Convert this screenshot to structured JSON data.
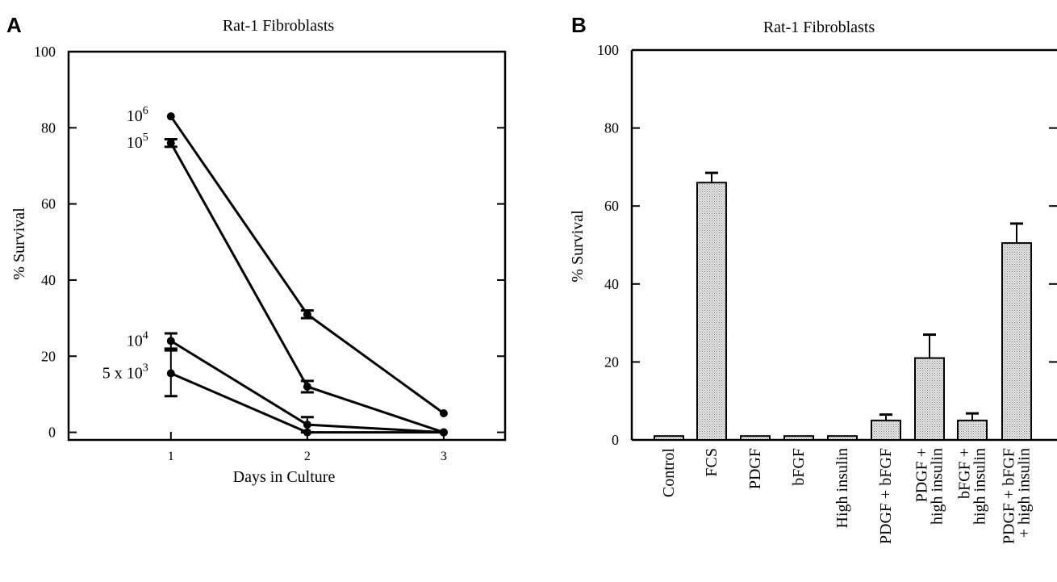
{
  "chart_data": [
    {
      "panel_letter": "A",
      "type": "line",
      "title": "Rat-1 Fibroblasts",
      "xlabel": "Days in Culture",
      "ylabel": "% Survival",
      "xlim": [
        0.25,
        3.45
      ],
      "ylim": [
        -2,
        100
      ],
      "x_ticks": [
        1,
        2,
        3
      ],
      "y_ticks": [
        0,
        20,
        40,
        60,
        80,
        100
      ],
      "series": [
        {
          "label_base": "10",
          "label_sup": "6",
          "x": [
            1,
            2,
            3
          ],
          "y": [
            83,
            31,
            5
          ],
          "err": [
            0,
            1,
            0
          ]
        },
        {
          "label_base": "10",
          "label_sup": "5",
          "x": [
            1,
            2,
            3
          ],
          "y": [
            76,
            12,
            0
          ],
          "err": [
            1,
            1.5,
            0
          ]
        },
        {
          "label_base": "10",
          "label_sup": "4",
          "x": [
            1,
            2,
            3
          ],
          "y": [
            24,
            2,
            0
          ],
          "err": [
            2,
            2,
            0
          ]
        },
        {
          "label_base": "5 x 10",
          "label_sup": "3",
          "x": [
            1,
            2,
            3
          ],
          "y": [
            15.5,
            0,
            0
          ],
          "err": [
            6,
            0,
            0
          ]
        }
      ]
    },
    {
      "panel_letter": "B",
      "type": "bar",
      "title": "Rat-1 Fibroblasts",
      "ylabel": "% Survival",
      "ylim": [
        0,
        100
      ],
      "y_ticks": [
        0,
        20,
        40,
        60,
        80,
        100
      ],
      "categories": [
        [
          "Control"
        ],
        [
          "FCS"
        ],
        [
          "PDGF"
        ],
        [
          "bFGF"
        ],
        [
          "High insulin"
        ],
        [
          "PDGF + bFGF"
        ],
        [
          "PDGF +",
          "high insulin"
        ],
        [
          "bFGF +",
          "high insulin"
        ],
        [
          "PDGF + bFGF",
          "+ high insulin"
        ]
      ],
      "values": [
        1,
        66,
        1,
        1,
        1,
        5,
        21,
        5,
        50.5
      ],
      "errors": [
        0,
        2.5,
        0,
        0,
        0,
        1.5,
        6,
        1.8,
        5
      ]
    }
  ]
}
